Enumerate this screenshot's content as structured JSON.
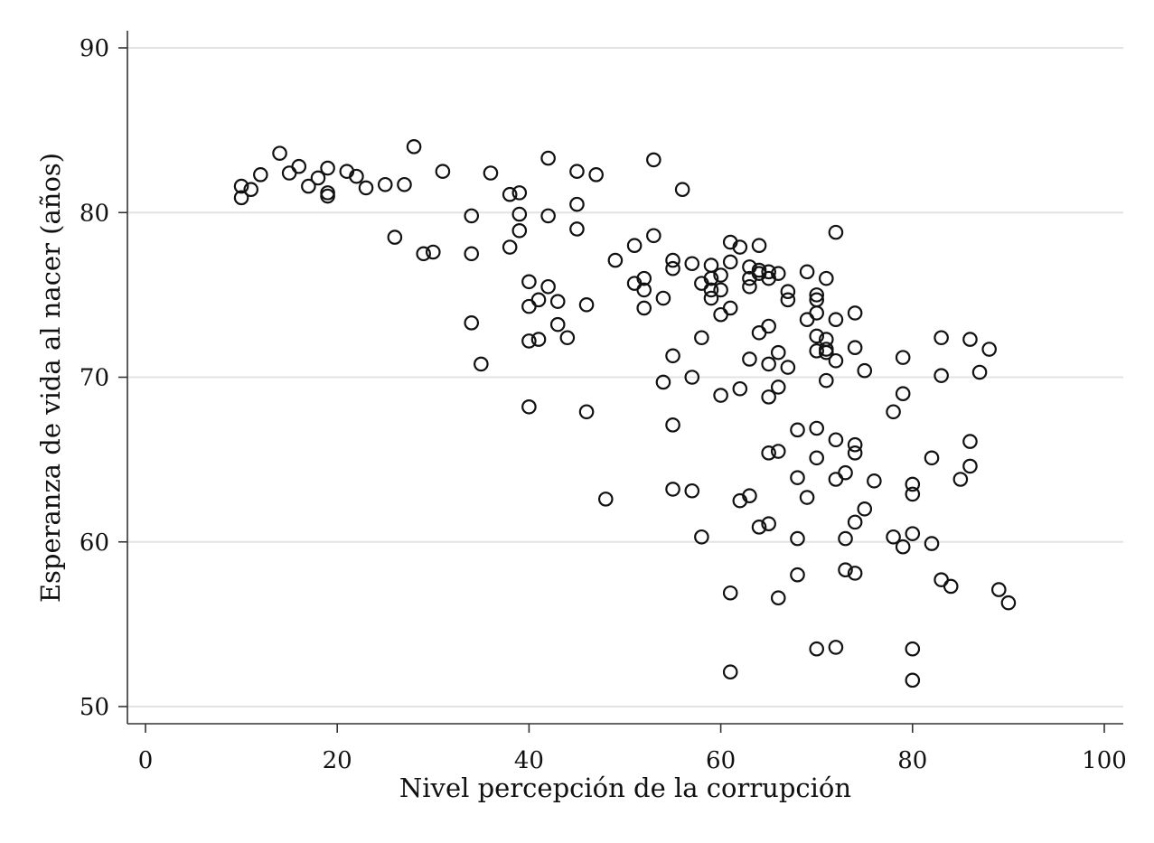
{
  "chart_data": {
    "type": "scatter",
    "title": "",
    "xlabel": "Nivel percepción de la corrupción",
    "ylabel": "Esperanza de vida al nacer (años)",
    "xlim": [
      0,
      100
    ],
    "ylim": [
      50,
      90
    ],
    "x_ticks": [
      0,
      20,
      40,
      60,
      80,
      100
    ],
    "y_ticks": [
      50,
      60,
      70,
      80,
      90
    ],
    "grid": "horizontal",
    "legend": "none",
    "marker": "hollow-circle",
    "colors": {
      "marker": "#111111",
      "grid": "#e3e3e3",
      "axis": "#333333"
    },
    "points": [
      [
        10,
        81.6
      ],
      [
        10,
        80.9
      ],
      [
        11,
        81.4
      ],
      [
        12,
        82.3
      ],
      [
        14,
        83.6
      ],
      [
        15,
        82.4
      ],
      [
        16,
        82.8
      ],
      [
        17,
        81.6
      ],
      [
        18,
        82.1
      ],
      [
        19,
        82.7
      ],
      [
        19,
        81.2
      ],
      [
        19,
        81.0
      ],
      [
        21,
        82.5
      ],
      [
        22,
        82.2
      ],
      [
        23,
        81.5
      ],
      [
        25,
        81.7
      ],
      [
        26,
        78.5
      ],
      [
        27,
        81.7
      ],
      [
        28,
        84.0
      ],
      [
        29,
        77.5
      ],
      [
        30,
        77.6
      ],
      [
        31,
        82.5
      ],
      [
        34,
        79.8
      ],
      [
        34,
        77.5
      ],
      [
        34,
        73.3
      ],
      [
        35,
        70.8
      ],
      [
        36,
        82.4
      ],
      [
        38,
        81.1
      ],
      [
        38,
        77.9
      ],
      [
        39,
        81.2
      ],
      [
        39,
        79.9
      ],
      [
        39,
        78.9
      ],
      [
        40,
        75.8
      ],
      [
        40,
        74.3
      ],
      [
        40,
        72.2
      ],
      [
        40,
        68.2
      ],
      [
        41,
        74.7
      ],
      [
        41,
        72.3
      ],
      [
        42,
        83.3
      ],
      [
        42,
        79.8
      ],
      [
        42,
        75.5
      ],
      [
        43,
        74.6
      ],
      [
        43,
        73.2
      ],
      [
        44,
        72.4
      ],
      [
        45,
        82.5
      ],
      [
        45,
        80.5
      ],
      [
        45,
        79.0
      ],
      [
        46,
        74.4
      ],
      [
        46,
        67.9
      ],
      [
        47,
        82.3
      ],
      [
        48,
        62.6
      ],
      [
        49,
        77.1
      ],
      [
        51,
        78.0
      ],
      [
        51,
        75.7
      ],
      [
        52,
        76.0
      ],
      [
        52,
        75.3
      ],
      [
        52,
        74.2
      ],
      [
        53,
        83.2
      ],
      [
        53,
        78.6
      ],
      [
        54,
        74.8
      ],
      [
        54,
        69.7
      ],
      [
        55,
        77.1
      ],
      [
        55,
        76.6
      ],
      [
        55,
        71.3
      ],
      [
        55,
        67.1
      ],
      [
        55,
        63.2
      ],
      [
        56,
        81.4
      ],
      [
        57,
        76.9
      ],
      [
        57,
        70.0
      ],
      [
        57,
        63.1
      ],
      [
        58,
        75.7
      ],
      [
        58,
        72.4
      ],
      [
        58,
        60.3
      ],
      [
        59,
        76.8
      ],
      [
        59,
        76.0
      ],
      [
        59,
        75.3
      ],
      [
        59,
        74.8
      ],
      [
        60,
        76.2
      ],
      [
        60,
        75.3
      ],
      [
        60,
        73.8
      ],
      [
        60,
        68.9
      ],
      [
        61,
        78.2
      ],
      [
        61,
        77.0
      ],
      [
        61,
        74.2
      ],
      [
        61,
        56.9
      ],
      [
        61,
        52.1
      ],
      [
        62,
        77.9
      ],
      [
        62,
        69.3
      ],
      [
        62,
        62.5
      ],
      [
        63,
        76.7
      ],
      [
        63,
        76.0
      ],
      [
        63,
        75.5
      ],
      [
        63,
        71.1
      ],
      [
        63,
        62.8
      ],
      [
        64,
        78.0
      ],
      [
        64,
        76.5
      ],
      [
        64,
        76.3
      ],
      [
        64,
        72.7
      ],
      [
        64,
        60.9
      ],
      [
        65,
        76.4
      ],
      [
        65,
        76.0
      ],
      [
        65,
        73.1
      ],
      [
        65,
        70.8
      ],
      [
        65,
        68.8
      ],
      [
        65,
        65.4
      ],
      [
        65,
        61.1
      ],
      [
        66,
        76.3
      ],
      [
        66,
        71.5
      ],
      [
        66,
        69.4
      ],
      [
        66,
        65.5
      ],
      [
        66,
        56.6
      ],
      [
        67,
        75.2
      ],
      [
        67,
        74.7
      ],
      [
        67,
        70.6
      ],
      [
        68,
        66.8
      ],
      [
        68,
        63.9
      ],
      [
        68,
        60.2
      ],
      [
        68,
        58.0
      ],
      [
        69,
        76.4
      ],
      [
        69,
        73.5
      ],
      [
        69,
        62.7
      ],
      [
        70,
        75.0
      ],
      [
        70,
        74.7
      ],
      [
        70,
        73.9
      ],
      [
        70,
        72.5
      ],
      [
        70,
        71.6
      ],
      [
        70,
        66.9
      ],
      [
        70,
        65.1
      ],
      [
        70,
        53.5
      ],
      [
        71,
        76.0
      ],
      [
        71,
        72.3
      ],
      [
        71,
        71.7
      ],
      [
        71,
        71.5
      ],
      [
        71,
        69.8
      ],
      [
        72,
        78.8
      ],
      [
        72,
        73.5
      ],
      [
        72,
        71.0
      ],
      [
        72,
        66.2
      ],
      [
        72,
        63.8
      ],
      [
        72,
        53.6
      ],
      [
        73,
        64.2
      ],
      [
        73,
        60.2
      ],
      [
        73,
        58.3
      ],
      [
        74,
        73.9
      ],
      [
        74,
        71.8
      ],
      [
        74,
        65.9
      ],
      [
        74,
        65.4
      ],
      [
        74,
        61.2
      ],
      [
        74,
        58.1
      ],
      [
        75,
        70.4
      ],
      [
        75,
        62.0
      ],
      [
        76,
        63.7
      ],
      [
        78,
        67.9
      ],
      [
        78,
        60.3
      ],
      [
        79,
        71.2
      ],
      [
        79,
        69.0
      ],
      [
        79,
        59.7
      ],
      [
        80,
        63.5
      ],
      [
        80,
        62.9
      ],
      [
        80,
        60.5
      ],
      [
        80,
        53.5
      ],
      [
        80,
        51.6
      ],
      [
        82,
        65.1
      ],
      [
        82,
        59.9
      ],
      [
        83,
        72.4
      ],
      [
        83,
        70.1
      ],
      [
        83,
        57.7
      ],
      [
        84,
        57.3
      ],
      [
        85,
        63.8
      ],
      [
        86,
        72.3
      ],
      [
        86,
        66.1
      ],
      [
        86,
        64.6
      ],
      [
        87,
        70.3
      ],
      [
        88,
        71.7
      ],
      [
        89,
        57.1
      ],
      [
        90,
        56.3
      ]
    ]
  }
}
